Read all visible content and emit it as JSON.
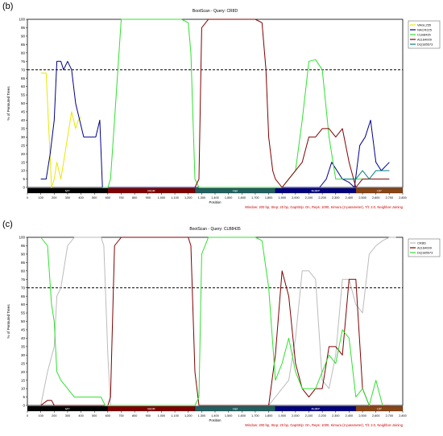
{
  "panels": [
    {
      "letter": "(b)"
    },
    {
      "letter": "(c)"
    }
  ],
  "chart_data": [
    {
      "type": "line",
      "title": "BootScan - Query: CR8D",
      "xlabel": "Position",
      "ylabel": "% of Permuted Trees",
      "xlim": [
        0,
        2800
      ],
      "ylim": [
        0,
        100
      ],
      "xticks": [
        0,
        100,
        200,
        300,
        400,
        500,
        600,
        700,
        800,
        900,
        1000,
        1100,
        1200,
        1300,
        1400,
        1500,
        1600,
        1700,
        1800,
        1900,
        2000,
        2100,
        2200,
        2300,
        2400,
        2500,
        2600,
        2700,
        2800
      ],
      "xtick_labels": [
        "0",
        "100",
        "200",
        "300",
        "400",
        "500",
        "600",
        "700",
        "800",
        "900",
        "1,000",
        "1,100",
        "1,200",
        "1,300",
        "1,400",
        "1,500",
        "1,600",
        "1,700",
        "1,800",
        "1,900",
        "2,000",
        "2,100",
        "2,200",
        "2,300",
        "2,400",
        "2,500",
        "2,600",
        "2,700",
        "2,800"
      ],
      "yticks": [
        0,
        5,
        10,
        15,
        20,
        25,
        30,
        35,
        40,
        45,
        50,
        55,
        60,
        65,
        70,
        75,
        80,
        85,
        90,
        95,
        100
      ],
      "threshold": 70,
      "legend_position": "right",
      "footnote": "Window: 200 bp, Step: 20 bp, GapStrip: On, Reps: 1000, Kimura (2-parameter), T/t: 2.0, Neighbor-Joining",
      "genome_map": [
        {
          "label": "MT",
          "start": 0,
          "end": 600,
          "color": "#000000"
        },
        {
          "label": "MOR",
          "start": 600,
          "end": 1250,
          "color": "#800000"
        },
        {
          "label": "Hel",
          "start": 1250,
          "end": 1850,
          "color": "#206060"
        },
        {
          "label": "RdRP",
          "start": 1850,
          "end": 2450,
          "color": "#000080"
        },
        {
          "label": "CP",
          "start": 2450,
          "end": 2800,
          "color": "#8b4513"
        }
      ],
      "series": [
        {
          "name": "VAGL255",
          "color": "#e8e800",
          "x": [
            100,
            140,
            180,
            200,
            220,
            250,
            280,
            300,
            330,
            360,
            380,
            400
          ],
          "y": [
            68,
            68,
            0,
            5,
            15,
            5,
            20,
            30,
            45,
            35,
            40,
            42
          ]
        },
        {
          "name": "NACR225",
          "color": "#00008b",
          "x": [
            100,
            140,
            170,
            200,
            220,
            250,
            270,
            300,
            330,
            360,
            390,
            420,
            450,
            480,
            510,
            540,
            560,
            2180,
            2230,
            2270,
            2310,
            2350,
            2400,
            2440,
            2480,
            2520,
            2560,
            2600,
            2640,
            2700
          ],
          "y": [
            5,
            5,
            20,
            40,
            75,
            75,
            70,
            75,
            70,
            50,
            40,
            30,
            30,
            30,
            30,
            40,
            0,
            0,
            5,
            15,
            10,
            5,
            3,
            0,
            25,
            30,
            40,
            15,
            10,
            15
          ]
        },
        {
          "name": "CLB8435",
          "color": "#30e030",
          "x": [
            560,
            600,
            620,
            650,
            700,
            750,
            800,
            850,
            900,
            950,
            1000,
            1050,
            1100,
            1150,
            1200,
            1220,
            1250,
            1280,
            1300,
            1850,
            1900,
            1950,
            2000,
            2050,
            2100,
            2150,
            2200,
            2250,
            2300,
            2400,
            2500
          ],
          "y": [
            0,
            0,
            5,
            40,
            100,
            100,
            100,
            100,
            100,
            100,
            100,
            100,
            100,
            100,
            98,
            80,
            5,
            0,
            0,
            0,
            0,
            5,
            10,
            40,
            75,
            76,
            70,
            30,
            5,
            5,
            5
          ]
        },
        {
          "name": "A1164009",
          "color": "#800000",
          "x": [
            1250,
            1280,
            1300,
            1350,
            1400,
            1500,
            1600,
            1700,
            1750,
            1780,
            1800,
            1830,
            1850,
            1900,
            1950,
            2000,
            2050,
            2100,
            2150,
            2200,
            2250,
            2300,
            2350,
            2400,
            2450,
            2500,
            2550,
            2600,
            2650,
            2700
          ],
          "y": [
            0,
            5,
            95,
            100,
            100,
            100,
            100,
            100,
            98,
            70,
            30,
            10,
            5,
            0,
            5,
            10,
            15,
            30,
            30,
            35,
            35,
            30,
            35,
            15,
            0,
            5,
            5,
            5,
            5,
            5
          ]
        },
        {
          "name": "DQ185573",
          "color": "#008080",
          "x": [
            2350,
            2400,
            2450,
            2500,
            2550,
            2600,
            2650,
            2700
          ],
          "y": [
            5,
            5,
            5,
            10,
            5,
            10,
            10,
            10
          ]
        }
      ]
    },
    {
      "type": "line",
      "title": "BootScan - Query: CLB8435",
      "xlabel": "Position",
      "ylabel": "% of Permuted Trees",
      "xlim": [
        0,
        2800
      ],
      "ylim": [
        0,
        100
      ],
      "xticks": [
        0,
        100,
        200,
        300,
        400,
        500,
        600,
        700,
        800,
        900,
        1000,
        1100,
        1200,
        1300,
        1400,
        1500,
        1600,
        1700,
        1800,
        1900,
        2000,
        2100,
        2200,
        2300,
        2400,
        2500,
        2600,
        2700,
        2800
      ],
      "xtick_labels": [
        "0",
        "100",
        "200",
        "300",
        "400",
        "500",
        "600",
        "700",
        "800",
        "900",
        "1,000",
        "1,100",
        "1,200",
        "1,300",
        "1,400",
        "1,500",
        "1,600",
        "1,700",
        "1,800",
        "1,900",
        "2,000",
        "2,100",
        "2,200",
        "2,300",
        "2,400",
        "2,500",
        "2,600",
        "2,700",
        "2,800"
      ],
      "yticks": [
        0,
        5,
        10,
        15,
        20,
        25,
        30,
        35,
        40,
        45,
        50,
        55,
        60,
        65,
        70,
        75,
        80,
        85,
        90,
        95,
        100
      ],
      "threshold": 70,
      "legend_position": "right",
      "footnote": "Window: 200 bp, Step: 20 bp, GapStrip: On, Reps: 1000, Kimura (2-parameter), T/t: 2.0, Neighbor-Joining",
      "genome_map": [
        {
          "label": "MT",
          "start": 0,
          "end": 600,
          "color": "#000000"
        },
        {
          "label": "MOR",
          "start": 600,
          "end": 1250,
          "color": "#800000"
        },
        {
          "label": "Hel",
          "start": 1250,
          "end": 1850,
          "color": "#206060"
        },
        {
          "label": "RdRP",
          "start": 1850,
          "end": 2450,
          "color": "#000080"
        },
        {
          "label": "CP",
          "start": 2450,
          "end": 2800,
          "color": "#8b4513"
        }
      ],
      "series": [
        {
          "name": "CR8D",
          "color": "#bbbbbb",
          "x": [
            100,
            150,
            200,
            220,
            250,
            300,
            350,
            400,
            450,
            500,
            550,
            570,
            600,
            620,
            1800,
            1850,
            1900,
            1950,
            2000,
            2050,
            2100,
            2150,
            2200,
            2250,
            2300,
            2350,
            2400,
            2450,
            2500,
            2550,
            2600,
            2650,
            2700,
            2750
          ],
          "y": [
            0,
            20,
            35,
            65,
            70,
            95,
            100,
            100,
            100,
            100,
            100,
            95,
            30,
            0,
            0,
            5,
            10,
            15,
            40,
            80,
            80,
            75,
            15,
            10,
            30,
            75,
            75,
            60,
            55,
            90,
            95,
            98,
            100,
            100
          ]
        },
        {
          "name": "A1164009",
          "color": "#800000",
          "x": [
            100,
            150,
            180,
            200,
            600,
            620,
            650,
            700,
            800,
            900,
            1000,
            1100,
            1200,
            1220,
            1250,
            1280,
            1800,
            1850,
            1900,
            1950,
            2000,
            2050,
            2100,
            2150,
            2200,
            2250,
            2300,
            2350,
            2400,
            2450,
            2500,
            2550,
            2600,
            2650,
            2700
          ],
          "y": [
            0,
            3,
            3,
            0,
            0,
            5,
            95,
            100,
            100,
            100,
            100,
            100,
            100,
            95,
            20,
            0,
            0,
            30,
            80,
            65,
            25,
            10,
            5,
            10,
            10,
            35,
            35,
            30,
            75,
            75,
            10,
            0,
            0,
            0,
            0
          ]
        },
        {
          "name": "DQ185573",
          "color": "#30e030",
          "x": [
            100,
            150,
            180,
            200,
            220,
            250,
            300,
            350,
            400,
            450,
            500,
            550,
            580,
            600,
            1250,
            1280,
            1300,
            1350,
            1400,
            1500,
            1600,
            1700,
            1750,
            1800,
            1850,
            1900,
            1950,
            2000,
            2050,
            2100,
            2150,
            2200,
            2250,
            2300,
            2350,
            2400,
            2450,
            2500,
            2550,
            2600,
            2650
          ],
          "y": [
            100,
            95,
            60,
            50,
            20,
            15,
            10,
            5,
            5,
            5,
            5,
            5,
            0,
            0,
            0,
            5,
            90,
            100,
            100,
            100,
            100,
            100,
            98,
            70,
            15,
            25,
            40,
            20,
            10,
            10,
            10,
            20,
            30,
            25,
            45,
            40,
            5,
            10,
            0,
            15,
            0
          ]
        }
      ]
    }
  ]
}
